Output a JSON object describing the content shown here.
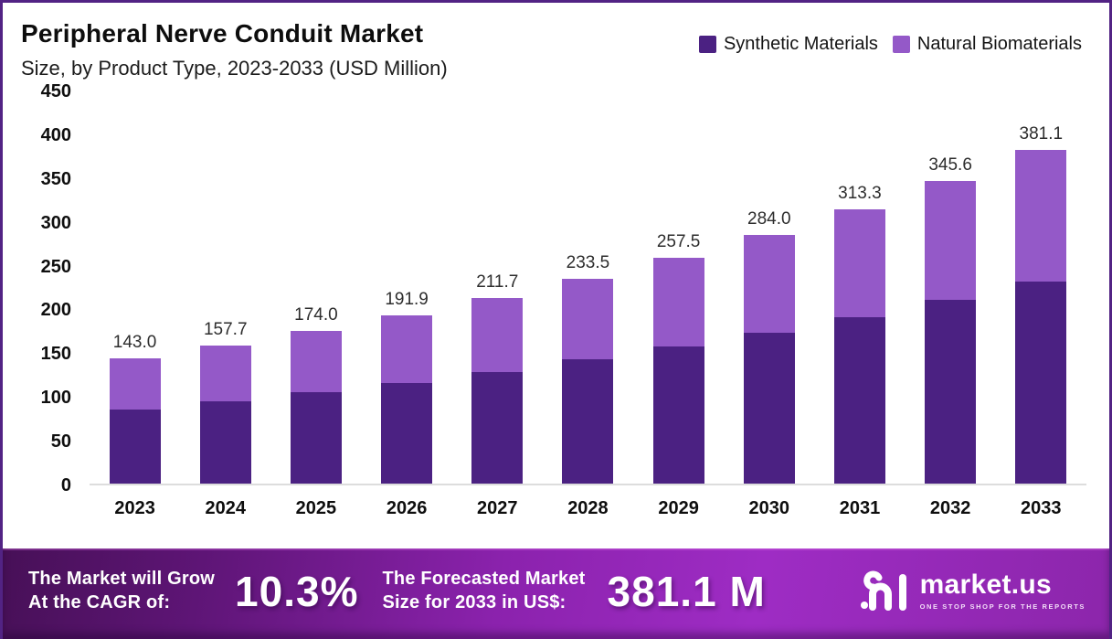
{
  "header": {
    "title": "Peripheral Nerve Conduit Market",
    "subtitle": "Size, by Product Type, 2023-2033 (USD Million)"
  },
  "legend": [
    {
      "label": "Synthetic Materials",
      "color": "#4b2182"
    },
    {
      "label": "Natural Biomaterials",
      "color": "#9459c8"
    }
  ],
  "chart_data": {
    "type": "bar",
    "stacked": true,
    "title": "Peripheral Nerve Conduit Market Size, by Product Type, 2023-2033 (USD Million)",
    "categories": [
      "2023",
      "2024",
      "2025",
      "2026",
      "2027",
      "2028",
      "2029",
      "2030",
      "2031",
      "2032",
      "2033"
    ],
    "series": [
      {
        "name": "Synthetic Materials",
        "color": "#4b2182",
        "values": [
          85.0,
          94.2,
          104.0,
          114.9,
          127.7,
          141.9,
          156.9,
          172.5,
          190.0,
          209.9,
          231.1
        ]
      },
      {
        "name": "Natural Biomaterials",
        "color": "#9459c8",
        "values": [
          58.0,
          63.5,
          70.0,
          77.0,
          84.0,
          91.6,
          100.6,
          111.5,
          123.3,
          135.7,
          150.0
        ]
      }
    ],
    "totals": [
      143.0,
      157.7,
      174.0,
      191.9,
      211.7,
      233.5,
      257.5,
      284.0,
      313.3,
      345.6,
      381.1
    ],
    "total_labels": [
      "143.0",
      "157.7",
      "174.0",
      "191.9",
      "211.7",
      "233.5",
      "257.5",
      "284.0",
      "313.3",
      "345.6",
      "381.1"
    ],
    "xlabel": "",
    "ylabel": "USD Million",
    "ylim": [
      0,
      450
    ],
    "yticks": [
      0,
      50,
      100,
      150,
      200,
      250,
      300,
      350,
      400,
      450
    ],
    "grid": false,
    "legend_position": "top-right"
  },
  "footer": {
    "cagr_caption_line1": "The Market will Grow",
    "cagr_caption_line2": "At the CAGR of:",
    "cagr_value": "10.3%",
    "forecast_caption_line1": "The Forecasted Market",
    "forecast_caption_line2": "Size for 2033 in US$:",
    "forecast_value": "381.1 M",
    "brand_name": "market.us",
    "brand_tagline": "ONE STOP SHOP FOR THE REPORTS"
  }
}
